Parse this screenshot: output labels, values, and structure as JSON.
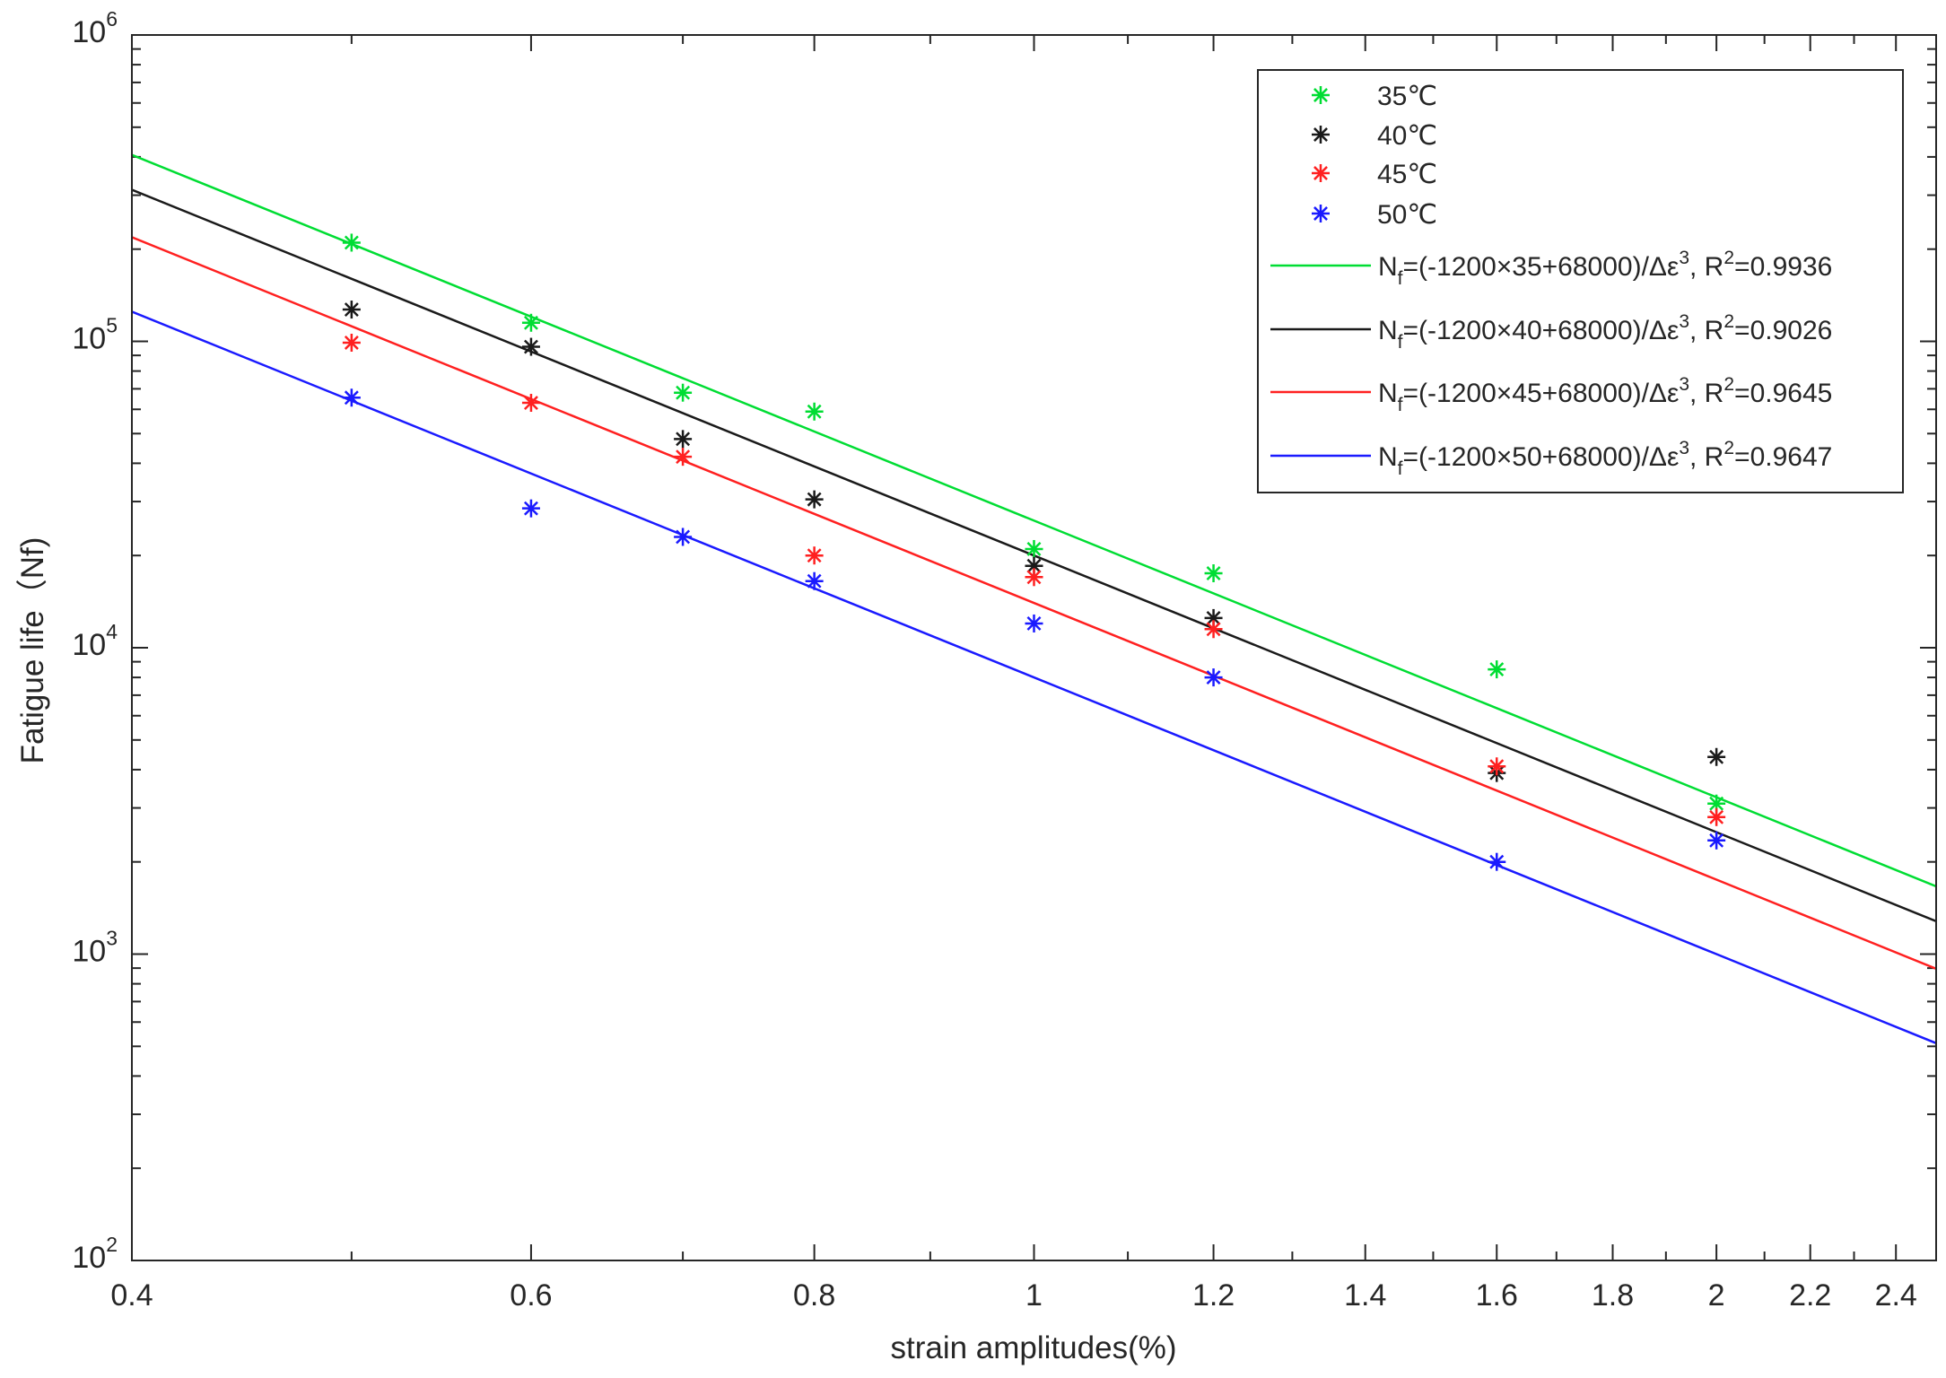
{
  "chart_data": {
    "type": "scatter",
    "xlabel": "strain amplitudes(%)",
    "ylabel": "Fatigue life（Nf)",
    "x_scale": "log",
    "y_scale": "log",
    "xlim": [
      0.4,
      2.5
    ],
    "ylim": [
      100,
      1000000
    ],
    "x_ticks": [
      0.4,
      0.6,
      0.8,
      1,
      1.2,
      1.4,
      1.6,
      1.8,
      2,
      2.2,
      2.4
    ],
    "x_tick_labels": [
      "0.4",
      "0.6",
      "0.8",
      "1",
      "1.2",
      "1.4",
      "1.6",
      "1.8",
      "2",
      "2.2",
      "2.4"
    ],
    "y_ticks": [
      100,
      1000,
      10000,
      100000,
      1000000
    ],
    "y_tick_labels": [
      {
        "base": "10",
        "exp": "2"
      },
      {
        "base": "10",
        "exp": "3"
      },
      {
        "base": "10",
        "exp": "4"
      },
      {
        "base": "10",
        "exp": "5"
      },
      {
        "base": "10",
        "exp": "6"
      }
    ],
    "grid": false,
    "legend_position": "top-right",
    "colors": {
      "35C": "#00dd33",
      "40C": "#1a1a1a",
      "45C": "#ff2020",
      "50C": "#1a1aff"
    },
    "series": [
      {
        "name": "35℃",
        "color": "#00dd33",
        "marker": "asterisk",
        "x": [
          0.5,
          0.6,
          0.7,
          0.8,
          1.0,
          1.2,
          1.6,
          2.0
        ],
        "y": [
          210000,
          115000,
          68000,
          59000,
          21000,
          17500,
          8500,
          3100
        ]
      },
      {
        "name": "40℃",
        "color": "#1a1a1a",
        "marker": "asterisk",
        "x": [
          0.5,
          0.6,
          0.7,
          0.8,
          1.0,
          1.2,
          1.6,
          2.0
        ],
        "y": [
          127000,
          96000,
          48000,
          30500,
          18500,
          12500,
          3900,
          4400
        ]
      },
      {
        "name": "45℃",
        "color": "#ff2020",
        "marker": "asterisk",
        "x": [
          0.5,
          0.6,
          0.7,
          0.8,
          1.0,
          1.2,
          1.6,
          2.0
        ],
        "y": [
          99000,
          63000,
          42000,
          20000,
          17000,
          11500,
          4100,
          2800
        ]
      },
      {
        "name": "50℃",
        "color": "#1a1aff",
        "marker": "asterisk",
        "x": [
          0.5,
          0.6,
          0.7,
          0.8,
          1.0,
          1.2,
          1.6,
          2.0
        ],
        "y": [
          65500,
          28500,
          23000,
          16500,
          12000,
          8000,
          2000,
          2350
        ]
      }
    ],
    "fits": [
      {
        "T": 35,
        "color": "#00dd33",
        "formula_parts": [
          "N",
          "f",
          "=(-1200×35+68000)/Δε",
          "3",
          ", R",
          "2",
          "=0.9936"
        ]
      },
      {
        "T": 40,
        "color": "#1a1a1a",
        "formula_parts": [
          "N",
          "f",
          "=(-1200×40+68000)/Δε",
          "3",
          ", R",
          "2",
          "=0.9026"
        ]
      },
      {
        "T": 45,
        "color": "#ff2020",
        "formula_parts": [
          "N",
          "f",
          "=(-1200×45+68000)/Δε",
          "3",
          ", R",
          "2",
          "=0.9645"
        ]
      },
      {
        "T": 50,
        "color": "#1a1aff",
        "formula_parts": [
          "N",
          "f",
          "=(-1200×50+68000)/Δε",
          "3",
          ", R",
          "2",
          "=0.9647"
        ]
      }
    ]
  }
}
